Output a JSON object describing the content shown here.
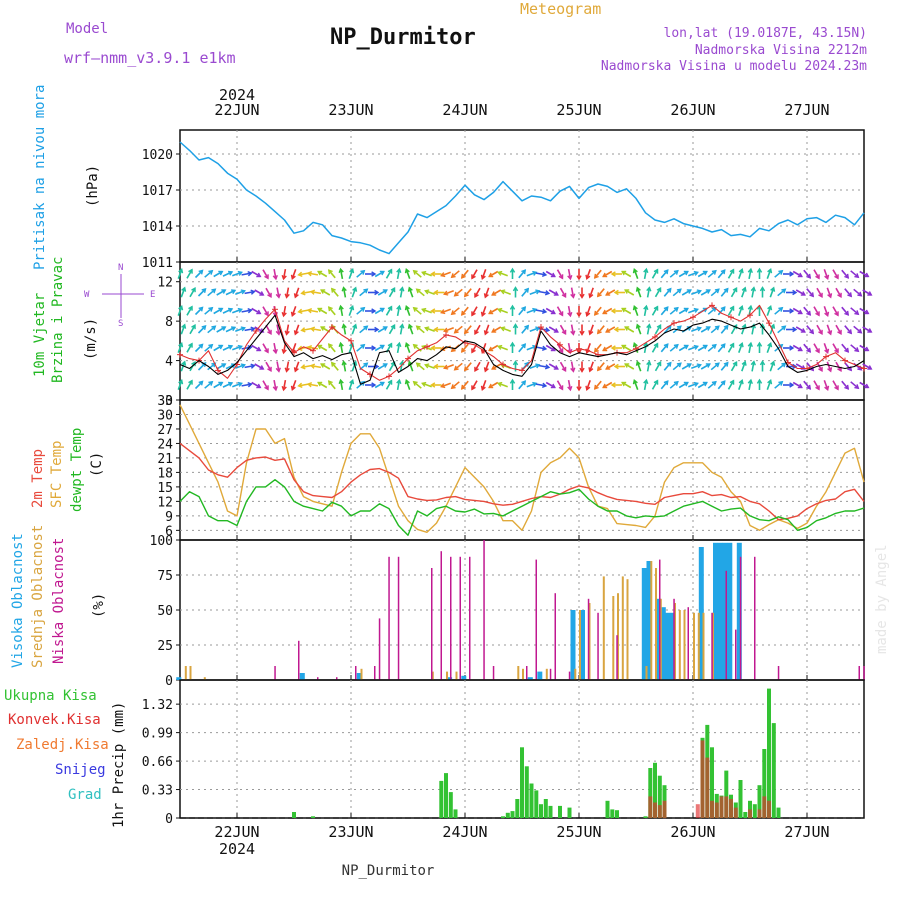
{
  "header": {
    "model_label": "Model",
    "model_value": "wrf—nmm_v3.9.1  e1km",
    "title": "NP_Durmitor",
    "product": "Meteogram",
    "coords": "lon,lat (19.0187E, 43.15N)",
    "elevation": "Nadmorska Visina 2212m",
    "model_elevation": "Nadmorska Visina u modelu 2024.23m",
    "footer": "NP_Durmitor",
    "watermark": "made by Angel"
  },
  "colors": {
    "pressure": "#1ea0e6",
    "wind_speed": "#000000",
    "wind_gust": "#e03030",
    "t2m": "#e84a3c",
    "tsfc": "#e0a93a",
    "dewpt": "#22b822",
    "cloud_high": "#22a6e6",
    "cloud_mid": "#d9a540",
    "cloud_low": "#c01890",
    "precip_total": "#33c233",
    "precip_conv": "#e03030",
    "precip_frozen": "#f07a30",
    "precip_snow": "#3a3ae0",
    "precip_hail": "#30c0c0",
    "label_blue": "#1ea0e6",
    "label_green": "#22b822",
    "label_orange": "#e0a93a",
    "label_red": "#e84a3c",
    "label_magenta": "#c01890",
    "label_purple": "#9a4ad0"
  },
  "time_axis": {
    "year": "2024",
    "days": [
      "22JUN",
      "23JUN",
      "24JUN",
      "25JUN",
      "26JUN",
      "27JUN"
    ],
    "start_hour": 0,
    "end_hour": 144
  },
  "chart_data": [
    {
      "type": "line",
      "name": "pressure",
      "labels": [
        "Pritisak na nivou mora",
        "(hPa)"
      ],
      "ylim": [
        1011,
        1022
      ],
      "yticks": [
        "1011",
        "1014",
        "1017",
        "1020"
      ],
      "x": [
        0,
        2,
        4,
        6,
        8,
        10,
        12,
        14,
        16,
        18,
        20,
        22,
        24,
        26,
        28,
        30,
        32,
        34,
        36,
        38,
        40,
        42,
        44,
        46,
        48,
        50,
        52,
        54,
        56,
        58,
        60,
        62,
        64,
        66,
        68,
        70,
        72,
        74,
        76,
        78,
        80,
        82,
        84,
        86,
        88,
        90,
        92,
        94,
        96,
        98,
        100,
        102,
        104,
        106,
        108,
        110,
        112,
        114,
        116,
        118,
        120,
        122,
        124,
        126,
        128,
        130,
        132,
        134,
        136,
        138,
        140,
        142,
        144
      ],
      "values": [
        1021,
        1020.3,
        1019.5,
        1019.7,
        1019.2,
        1018.4,
        1017.9,
        1017,
        1016.5,
        1015.9,
        1015.2,
        1014.5,
        1013.4,
        1013.6,
        1014.3,
        1014.1,
        1013.2,
        1013,
        1012.7,
        1012.6,
        1012.4,
        1012,
        1011.7,
        1012.6,
        1013.5,
        1015,
        1014.7,
        1015.2,
        1015.7,
        1016.5,
        1017.4,
        1016.6,
        1016.2,
        1016.8,
        1017.7,
        1016.9,
        1016.1,
        1016.5,
        1016.4,
        1016.1,
        1016.9,
        1017.3,
        1016.3,
        1017.2,
        1017.5,
        1017.3,
        1016.8,
        1017.1,
        1016.3,
        1015.1,
        1014.5,
        1014.3,
        1014.6,
        1014.2,
        1014,
        1013.8,
        1013.5,
        1013.7,
        1013.2,
        1013.3,
        1013.1,
        1013.8,
        1013.6,
        1014.2,
        1014.5,
        1014.1,
        1014.6,
        1014.7,
        1014.3,
        1014.9,
        1014.7,
        1014.1,
        1015.1
      ]
    },
    {
      "type": "line",
      "name": "wind",
      "labels": [
        "10m Vjetar",
        "Brzina i Pravac",
        "(m/s)"
      ],
      "legend_dirs": [
        "W",
        "E",
        "S",
        "N"
      ],
      "ylim": [
        0,
        14
      ],
      "yticks": [
        "0",
        "4",
        "8",
        "12"
      ],
      "x": [
        0,
        2,
        4,
        6,
        8,
        10,
        12,
        14,
        16,
        18,
        20,
        22,
        24,
        26,
        28,
        30,
        32,
        34,
        36,
        38,
        40,
        42,
        44,
        46,
        48,
        50,
        52,
        54,
        56,
        58,
        60,
        62,
        64,
        66,
        68,
        70,
        72,
        74,
        76,
        78,
        80,
        82,
        84,
        86,
        88,
        90,
        92,
        94,
        96,
        98,
        100,
        102,
        104,
        106,
        108,
        110,
        112,
        114,
        116,
        118,
        120,
        122,
        124,
        126,
        128,
        130,
        132,
        134,
        136,
        138,
        140,
        142,
        144
      ],
      "speed": [
        3.6,
        3.2,
        4.0,
        3.4,
        2.6,
        3.0,
        3.8,
        5.0,
        6.2,
        7.4,
        8.6,
        5.8,
        4.4,
        4.8,
        4.2,
        4.5,
        4.1,
        4.6,
        4.8,
        1.6,
        2.0,
        4.8,
        5.0,
        2.8,
        3.4,
        4.2,
        4.0,
        4.6,
        5.4,
        5.2,
        6.0,
        5.8,
        5.2,
        3.6,
        3.0,
        2.6,
        2.4,
        3.6,
        7.0,
        5.6,
        4.8,
        4.4,
        4.8,
        4.6,
        4.4,
        4.6,
        4.8,
        4.6,
        5.0,
        5.4,
        6.0,
        6.8,
        7.2,
        7.0,
        7.6,
        7.8,
        8.2,
        8.0,
        7.6,
        7.2,
        7.4,
        7.8,
        6.6,
        5.2,
        3.4,
        2.8,
        3.0,
        3.4,
        3.6,
        3.4,
        3.2,
        3.4,
        4.0
      ],
      "gust": [
        4.6,
        4.2,
        4.0,
        5.0,
        3.0,
        2.2,
        3.6,
        5.6,
        7.0,
        8.2,
        9.2,
        6.0,
        4.8,
        5.4,
        5.0,
        6.2,
        7.4,
        6.6,
        6.0,
        3.2,
        2.6,
        2.0,
        2.4,
        3.2,
        4.2,
        5.0,
        5.4,
        5.8,
        6.6,
        6.4,
        5.8,
        5.6,
        5.0,
        4.4,
        3.6,
        3.2,
        3.0,
        4.0,
        7.4,
        6.4,
        5.6,
        4.8,
        5.2,
        5.0,
        4.6,
        4.6,
        4.8,
        4.8,
        5.2,
        5.8,
        6.4,
        7.2,
        7.8,
        8.0,
        8.4,
        9.0,
        9.6,
        8.8,
        8.4,
        8.0,
        8.6,
        9.6,
        7.8,
        5.8,
        3.8,
        3.2,
        3.2,
        3.6,
        4.4,
        4.8,
        4.0,
        3.6,
        3.2
      ],
      "direction_deg": [
        200,
        210,
        225,
        230,
        240,
        245,
        250,
        260,
        300,
        330,
        350,
        10,
        20,
        80,
        100,
        120,
        140,
        170,
        200,
        230,
        270,
        240,
        210,
        190,
        160,
        130,
        110,
        90,
        70,
        50,
        40,
        30,
        20,
        60,
        110,
        180,
        220,
        250,
        280,
        300,
        330,
        350,
        0,
        20,
        40,
        60,
        90,
        120,
        160,
        190,
        210,
        220,
        230,
        240,
        250,
        240,
        230,
        220,
        210,
        200,
        190,
        180,
        200,
        230,
        270,
        300,
        320,
        330,
        340,
        330,
        320,
        310,
        300
      ]
    },
    {
      "type": "line",
      "name": "temperature",
      "labels": [
        "2m Temp",
        "SFC Temp",
        "dewpt Temp",
        "(C)"
      ],
      "ylim": [
        4,
        33
      ],
      "yticks": [
        "6",
        "9",
        "12",
        "15",
        "18",
        "21",
        "24",
        "27",
        "30",
        "33"
      ],
      "x": [
        0,
        2,
        4,
        6,
        8,
        10,
        12,
        14,
        16,
        18,
        20,
        22,
        24,
        26,
        28,
        30,
        32,
        34,
        36,
        38,
        40,
        42,
        44,
        46,
        48,
        50,
        52,
        54,
        56,
        58,
        60,
        62,
        64,
        66,
        68,
        70,
        72,
        74,
        76,
        78,
        80,
        82,
        84,
        86,
        88,
        90,
        92,
        94,
        96,
        98,
        100,
        102,
        104,
        106,
        108,
        110,
        112,
        114,
        116,
        118,
        120,
        122,
        124,
        126,
        128,
        130,
        132,
        134,
        136,
        138,
        140,
        142,
        144
      ],
      "t2m": [
        24,
        22.5,
        21,
        18.5,
        17.5,
        17,
        19,
        20.5,
        21,
        21.2,
        20.5,
        20.8,
        16.5,
        14,
        13.2,
        13,
        12.8,
        14,
        16,
        17.5,
        18.6,
        18.8,
        18,
        16.8,
        13,
        12.5,
        12.2,
        12.3,
        12.8,
        13,
        12.4,
        12.2,
        12,
        11.5,
        11.2,
        11.4,
        12,
        12.6,
        13,
        12.8,
        13.5,
        14.5,
        15.2,
        14.8,
        13.8,
        13,
        12.4,
        12.2,
        12,
        11.6,
        11.4,
        12.8,
        13.2,
        13.6,
        13.6,
        14,
        13.2,
        13.4,
        12.8,
        13,
        12,
        11.5,
        10,
        8.2,
        8.5,
        9,
        10.5,
        11.5,
        12.2,
        12.5,
        14,
        14.5,
        12
      ],
      "tsfc": [
        32,
        28,
        24,
        20,
        16,
        10,
        9,
        20,
        27,
        27,
        24,
        25,
        17,
        13,
        12,
        11.5,
        11,
        18,
        24,
        26,
        26,
        23,
        17,
        11,
        8,
        6.2,
        5.6,
        7.5,
        11,
        15,
        19,
        17,
        15,
        12,
        8,
        8,
        6,
        10,
        18,
        20,
        21,
        23,
        21,
        15,
        11,
        10.5,
        7.4,
        7.2,
        7,
        6.6,
        9,
        16,
        19,
        20,
        20,
        20,
        18,
        17,
        14,
        12,
        7,
        6,
        7.2,
        8.2,
        7.5,
        6.4,
        7.5,
        11,
        14,
        18,
        22,
        23,
        16
      ],
      "dewpt": [
        12,
        14,
        13,
        9,
        8,
        8,
        7,
        12,
        15,
        15,
        16.5,
        15,
        12,
        11,
        10.5,
        10,
        11.8,
        11,
        9,
        10,
        10,
        11.5,
        10.5,
        7,
        5,
        10,
        9,
        10.5,
        11,
        10,
        9.8,
        10.4,
        9.4,
        9.5,
        9,
        10,
        11,
        12,
        13,
        14,
        13.5,
        13.8,
        14.5,
        12.5,
        11,
        10,
        10,
        9,
        8.6,
        9,
        8.8,
        9,
        10,
        11,
        11.5,
        12,
        11,
        10,
        10.4,
        10.6,
        9,
        8.2,
        8,
        8.8,
        8.2,
        6,
        6.6,
        8,
        8.6,
        9.5,
        10,
        10,
        10.6
      ]
    },
    {
      "type": "bar",
      "name": "clouds",
      "labels": [
        "Visoka Oblacnost",
        "Srednja Oblacnost",
        "Niska Oblacnost",
        "(%)"
      ],
      "ylim": [
        0,
        100
      ],
      "yticks": [
        "0",
        "25",
        "50",
        "75",
        "100"
      ],
      "high": [
        [
          0,
          2
        ],
        [
          26,
          5
        ],
        [
          38,
          5
        ],
        [
          57,
          2
        ],
        [
          60,
          3
        ],
        [
          74,
          2
        ],
        [
          76,
          6
        ],
        [
          83,
          50
        ],
        [
          85,
          50
        ],
        [
          98,
          80
        ],
        [
          99,
          85
        ],
        [
          101,
          58
        ],
        [
          102,
          52
        ],
        [
          103,
          48
        ],
        [
          104,
          48
        ],
        [
          110,
          95
        ],
        [
          113,
          98
        ],
        [
          114,
          98
        ],
        [
          115,
          98
        ],
        [
          116,
          98
        ],
        [
          118,
          98
        ]
      ],
      "mid": [
        [
          1,
          10
        ],
        [
          2,
          10
        ],
        [
          5,
          2
        ],
        [
          38,
          8
        ],
        [
          53,
          6
        ],
        [
          56,
          6
        ],
        [
          58,
          6
        ],
        [
          71,
          10
        ],
        [
          72,
          8
        ],
        [
          77,
          8
        ],
        [
          83,
          8
        ],
        [
          84,
          50
        ],
        [
          86,
          55
        ],
        [
          89,
          74
        ],
        [
          91,
          60
        ],
        [
          92,
          62
        ],
        [
          93,
          74
        ],
        [
          94,
          72
        ],
        [
          98,
          10
        ],
        [
          99,
          85
        ],
        [
          100,
          80
        ],
        [
          101,
          58
        ],
        [
          104,
          55
        ],
        [
          105,
          50
        ],
        [
          106,
          50
        ],
        [
          108,
          48
        ],
        [
          109,
          48
        ],
        [
          110,
          48
        ],
        [
          112,
          48
        ]
      ],
      "low": [
        [
          20,
          10
        ],
        [
          25,
          28
        ],
        [
          29,
          2
        ],
        [
          33,
          2
        ],
        [
          37,
          10
        ],
        [
          41,
          10
        ],
        [
          42,
          44
        ],
        [
          44,
          88
        ],
        [
          46,
          88
        ],
        [
          53,
          80
        ],
        [
          55,
          92
        ],
        [
          57,
          88
        ],
        [
          59,
          88
        ],
        [
          61,
          88
        ],
        [
          64,
          100
        ],
        [
          66,
          10
        ],
        [
          73,
          10
        ],
        [
          75,
          86
        ],
        [
          78,
          8
        ],
        [
          79,
          62
        ],
        [
          82,
          6
        ],
        [
          86,
          58
        ],
        [
          88,
          48
        ],
        [
          92,
          32
        ],
        [
          101,
          86
        ],
        [
          104,
          58
        ],
        [
          107,
          52
        ],
        [
          112,
          48
        ],
        [
          115,
          78
        ],
        [
          117,
          36
        ],
        [
          118,
          88
        ],
        [
          121,
          88
        ],
        [
          126,
          10
        ],
        [
          143,
          10
        ],
        [
          144,
          10
        ]
      ]
    },
    {
      "type": "bar",
      "name": "precipitation",
      "labels": [
        "Ukupna Kisa",
        "Konvek.Kisa",
        "Zaledj.Kisa",
        "Snijeg",
        "Grad",
        "1hr Precip (mm)"
      ],
      "ylim": [
        0,
        1.6
      ],
      "yticks": [
        "0",
        "0.33",
        "0.66",
        "0.99",
        "1.32"
      ],
      "total": [
        [
          24,
          0.07
        ],
        [
          28,
          0.02
        ],
        [
          55,
          0.43
        ],
        [
          56,
          0.52
        ],
        [
          57,
          0.3
        ],
        [
          58,
          0.1
        ],
        [
          68,
          0.02
        ],
        [
          69,
          0.06
        ],
        [
          70,
          0.08
        ],
        [
          71,
          0.22
        ],
        [
          72,
          0.82
        ],
        [
          73,
          0.6
        ],
        [
          74,
          0.4
        ],
        [
          75,
          0.32
        ],
        [
          76,
          0.16
        ],
        [
          77,
          0.22
        ],
        [
          78,
          0.14
        ],
        [
          80,
          0.14
        ],
        [
          82,
          0.12
        ],
        [
          90,
          0.2
        ],
        [
          91,
          0.1
        ],
        [
          92,
          0.09
        ],
        [
          98,
          0.02
        ],
        [
          99,
          0.58
        ],
        [
          100,
          0.64
        ],
        [
          101,
          0.49
        ],
        [
          102,
          0.38
        ],
        [
          110,
          0.93
        ],
        [
          111,
          1.08
        ],
        [
          112,
          0.82
        ],
        [
          113,
          0.28
        ],
        [
          114,
          0.26
        ],
        [
          115,
          0.55
        ],
        [
          116,
          0.27
        ],
        [
          117,
          0.18
        ],
        [
          118,
          0.44
        ],
        [
          119,
          0.07
        ],
        [
          120,
          0.2
        ],
        [
          121,
          0.16
        ],
        [
          122,
          0.38
        ],
        [
          123,
          0.8
        ],
        [
          124,
          1.5
        ],
        [
          125,
          1.1
        ],
        [
          126,
          0.12
        ]
      ],
      "convective": [
        [
          99,
          0.25
        ],
        [
          100,
          0.18
        ],
        [
          101,
          0.15
        ],
        [
          102,
          0.2
        ],
        [
          109,
          0.16
        ],
        [
          110,
          0.9
        ],
        [
          111,
          0.7
        ],
        [
          112,
          0.2
        ],
        [
          113,
          0.18
        ],
        [
          114,
          0.25
        ],
        [
          115,
          0.25
        ],
        [
          116,
          0.22
        ],
        [
          117,
          0.12
        ],
        [
          120,
          0.1
        ],
        [
          122,
          0.1
        ],
        [
          123,
          0.25
        ],
        [
          124,
          0.2
        ]
      ]
    }
  ]
}
